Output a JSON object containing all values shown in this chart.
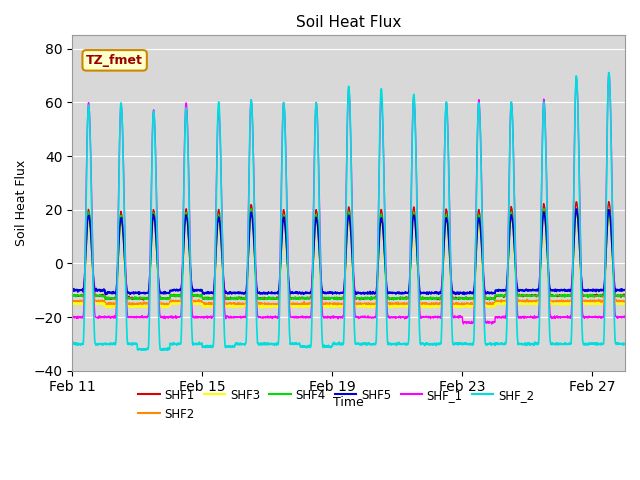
{
  "title": "Soil Heat Flux",
  "ylabel": "Soil Heat Flux",
  "xlabel": "Time",
  "ylim": [
    -40,
    85
  ],
  "yticks": [
    -40,
    -20,
    0,
    20,
    40,
    60,
    80
  ],
  "xtick_labels": [
    "Feb 11",
    "Feb 15",
    "Feb 19",
    "Feb 23",
    "Feb 27"
  ],
  "xtick_positions": [
    11,
    15,
    19,
    23,
    27
  ],
  "annotation_text": "TZ_fmet",
  "facecolor": "#d8d8d8",
  "series": [
    {
      "name": "SHF1",
      "color": "#dd0000",
      "lw": 1.0
    },
    {
      "name": "SHF2",
      "color": "#ff8800",
      "lw": 1.0
    },
    {
      "name": "SHF3",
      "color": "#ffff00",
      "lw": 1.0
    },
    {
      "name": "SHF4",
      "color": "#00dd00",
      "lw": 1.0
    },
    {
      "name": "SHF5",
      "color": "#0000dd",
      "lw": 1.2
    },
    {
      "name": "SHF_1",
      "color": "#ff00ff",
      "lw": 1.0
    },
    {
      "name": "SHF_2",
      "color": "#00dddd",
      "lw": 1.2
    }
  ],
  "n_days": 17,
  "day_start": 11,
  "peaks": {
    "SHF1": [
      20,
      19,
      20,
      20,
      20,
      22,
      20,
      20,
      21,
      20,
      21,
      20,
      20,
      21,
      22,
      23,
      23
    ],
    "SHF2": [
      18,
      17,
      18,
      18,
      17,
      20,
      17,
      17,
      18,
      17,
      18,
      17,
      17,
      18,
      19,
      20,
      20
    ],
    "SHF3": [
      16,
      15,
      16,
      16,
      15,
      18,
      15,
      15,
      16,
      15,
      16,
      15,
      15,
      16,
      17,
      18,
      18
    ],
    "SHF4": [
      19,
      18,
      19,
      19,
      18,
      20,
      18,
      18,
      19,
      18,
      19,
      18,
      18,
      19,
      20,
      20,
      20
    ],
    "SHF5": [
      18,
      17,
      18,
      18,
      17,
      19,
      17,
      17,
      18,
      17,
      18,
      17,
      17,
      18,
      19,
      20,
      20
    ],
    "SHF_1": [
      60,
      59,
      57,
      60,
      57,
      61,
      60,
      60,
      65,
      62,
      62,
      60,
      61,
      60,
      61,
      69,
      71
    ],
    "SHF_2": [
      59,
      60,
      57,
      58,
      60,
      61,
      60,
      60,
      66,
      65,
      63,
      60,
      60,
      60,
      60,
      70,
      71
    ]
  },
  "troughs": {
    "SHF1": [
      -12,
      -13,
      -13,
      -12,
      -13,
      -13,
      -13,
      -13,
      -13,
      -13,
      -13,
      -13,
      -13,
      -12,
      -12,
      -12,
      -12
    ],
    "SHF2": [
      -14,
      -15,
      -15,
      -14,
      -15,
      -15,
      -15,
      -15,
      -15,
      -15,
      -15,
      -15,
      -15,
      -14,
      -14,
      -14,
      -14
    ],
    "SHF3": [
      -15,
      -16,
      -16,
      -15,
      -16,
      -16,
      -16,
      -16,
      -16,
      -16,
      -16,
      -16,
      -16,
      -15,
      -15,
      -15,
      -15
    ],
    "SHF4": [
      -12,
      -13,
      -13,
      -12,
      -13,
      -13,
      -13,
      -13,
      -13,
      -13,
      -13,
      -13,
      -13,
      -12,
      -12,
      -12,
      -12
    ],
    "SHF5": [
      -10,
      -11,
      -11,
      -10,
      -11,
      -11,
      -11,
      -11,
      -11,
      -11,
      -11,
      -11,
      -11,
      -10,
      -10,
      -10,
      -10
    ],
    "SHF_1": [
      -20,
      -20,
      -20,
      -20,
      -20,
      -20,
      -20,
      -20,
      -20,
      -20,
      -20,
      -20,
      -22,
      -20,
      -20,
      -20,
      -20
    ],
    "SHF_2": [
      -30,
      -30,
      -32,
      -30,
      -31,
      -30,
      -30,
      -31,
      -30,
      -30,
      -30,
      -30,
      -30,
      -30,
      -30,
      -30,
      -30
    ]
  }
}
